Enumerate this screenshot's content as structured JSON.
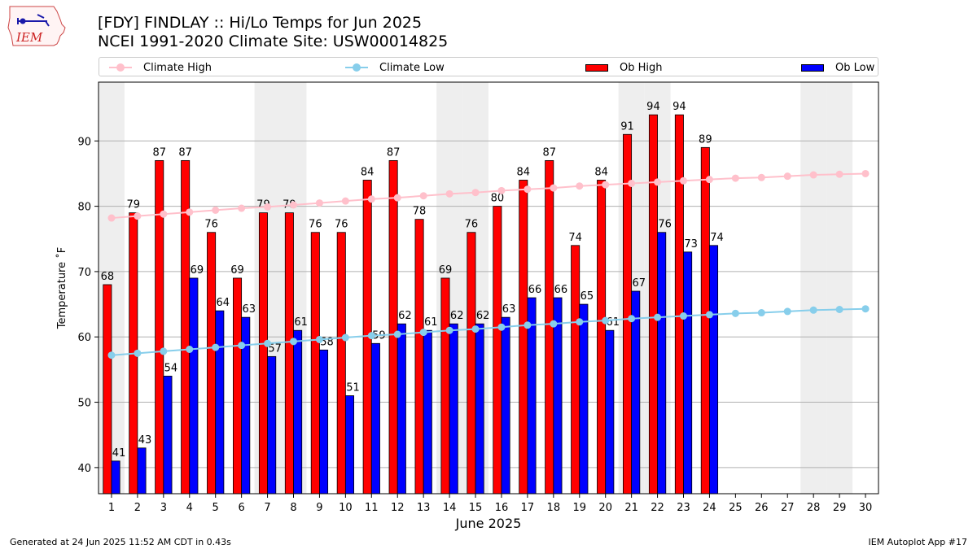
{
  "header": {
    "logo_text": "IEM",
    "title_line1": "[FDY] FINDLAY :: Hi/Lo Temps for Jun 2025",
    "title_line2": "NCEI 1991-2020 Climate Site: USW00014825"
  },
  "legend": {
    "placement": "top, above plot, single row",
    "items": [
      {
        "label": "Climate High",
        "kind": "line",
        "color": "#ffc0cb"
      },
      {
        "label": "Climate Low",
        "kind": "line",
        "color": "#87ceeb"
      },
      {
        "label": "Ob High",
        "kind": "bar",
        "color": "#ff0000"
      },
      {
        "label": "Ob Low",
        "kind": "bar",
        "color": "#0000ff"
      }
    ]
  },
  "footer": {
    "left": "Generated at 24 Jun 2025 11:52 AM CDT in 0.43s",
    "right": "IEM Autoplot App #17"
  },
  "chart_data": {
    "type": "bar",
    "title": "[FDY] FINDLAY :: Hi/Lo Temps for Jun 2025",
    "subtitle": "NCEI 1991-2020 Climate Site: USW00014825",
    "xlabel": "June 2025",
    "ylabel": "Temperature ˚F",
    "x": [
      1,
      2,
      3,
      4,
      5,
      6,
      7,
      8,
      9,
      10,
      11,
      12,
      13,
      14,
      15,
      16,
      17,
      18,
      19,
      20,
      21,
      22,
      23,
      24,
      25,
      26,
      27,
      28,
      29,
      30
    ],
    "xlim": [
      0.5,
      30.5
    ],
    "ylim": [
      36,
      99
    ],
    "yticks": [
      40,
      50,
      60,
      70,
      80,
      90
    ],
    "grid": "horizontal",
    "weekend_shading": {
      "color": "#eeeeee",
      "days": [
        1,
        7,
        8,
        14,
        15,
        21,
        22,
        28,
        29
      ]
    },
    "series": [
      {
        "name": "Ob High",
        "type": "bar",
        "color": "#ff0000",
        "values": [
          68,
          79,
          87,
          87,
          76,
          69,
          79,
          79,
          76,
          76,
          84,
          87,
          78,
          69,
          76,
          80,
          84,
          87,
          74,
          84,
          91,
          94,
          94,
          89,
          null,
          null,
          null,
          null,
          null,
          null
        ]
      },
      {
        "name": "Ob Low",
        "type": "bar",
        "color": "#0000ff",
        "values": [
          41,
          43,
          54,
          69,
          64,
          63,
          57,
          61,
          58,
          51,
          59,
          62,
          61,
          62,
          62,
          63,
          66,
          66,
          65,
          61,
          67,
          76,
          73,
          74,
          null,
          null,
          null,
          null,
          null,
          null
        ]
      },
      {
        "name": "Climate High",
        "type": "line",
        "color": "#ffc0cb",
        "values": [
          78.2,
          78.5,
          78.8,
          79.1,
          79.4,
          79.7,
          79.9,
          80.2,
          80.5,
          80.8,
          81.1,
          81.3,
          81.6,
          81.9,
          82.1,
          82.4,
          82.6,
          82.8,
          83.1,
          83.3,
          83.5,
          83.7,
          83.9,
          84.1,
          84.3,
          84.4,
          84.6,
          84.8,
          84.9,
          85.0
        ]
      },
      {
        "name": "Climate Low",
        "type": "line",
        "color": "#87ceeb",
        "values": [
          57.2,
          57.5,
          57.8,
          58.1,
          58.4,
          58.7,
          59.0,
          59.3,
          59.6,
          59.9,
          60.2,
          60.4,
          60.7,
          61.0,
          61.2,
          61.5,
          61.8,
          62.0,
          62.3,
          62.5,
          62.8,
          63.0,
          63.2,
          63.4,
          63.6,
          63.7,
          63.9,
          64.1,
          64.2,
          64.3
        ]
      }
    ]
  }
}
